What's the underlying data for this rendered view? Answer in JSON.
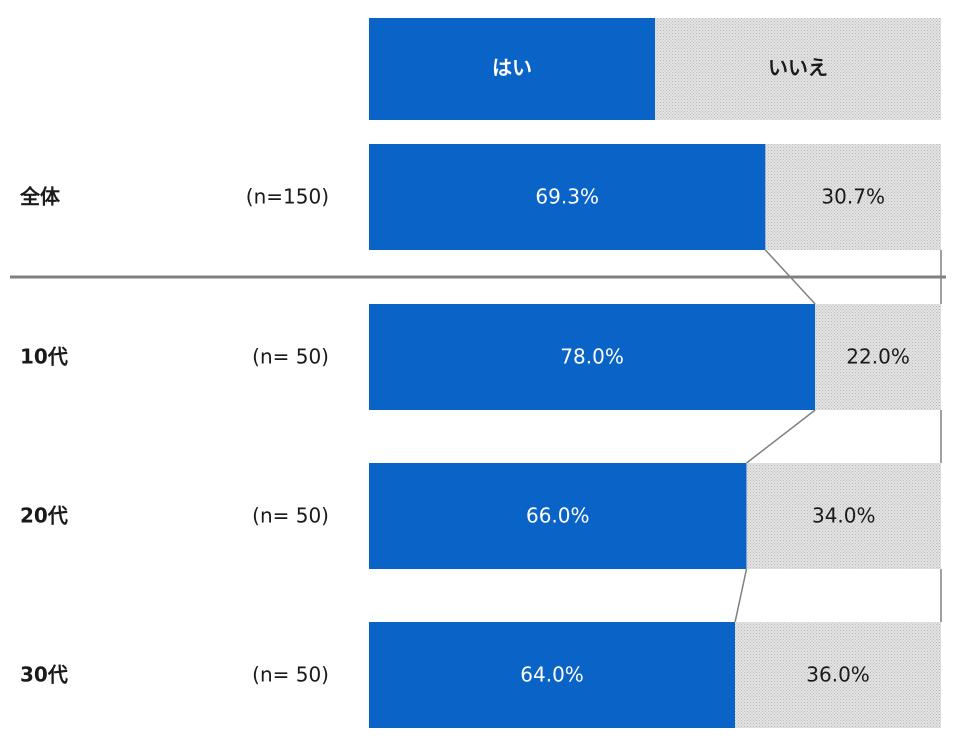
{
  "colors": {
    "yes": "#0a64c8",
    "no": "#dcdcdc",
    "connector": "#808080",
    "divider": "#808080"
  },
  "chart_data": {
    "type": "bar",
    "orientation": "horizontal",
    "stacked": "100%",
    "legend": [
      "はい",
      "いいえ"
    ],
    "categories": [
      "全体",
      "10代",
      "20代",
      "30代"
    ],
    "sample_sizes": [
      "(n=150)",
      "(n=  50)",
      "(n=  50)",
      "(n=  50)"
    ],
    "series": [
      {
        "name": "はい",
        "values": [
          69.3,
          78.0,
          66.0,
          64.0
        ],
        "labels": [
          "69.3%",
          "78.0%",
          "66.0%",
          "64.0%"
        ]
      },
      {
        "name": "いいえ",
        "values": [
          30.7,
          22.0,
          34.0,
          36.0
        ],
        "labels": [
          "30.7%",
          "22.0%",
          "34.0%",
          "36.0%"
        ]
      }
    ],
    "xlim": [
      0,
      100
    ]
  }
}
